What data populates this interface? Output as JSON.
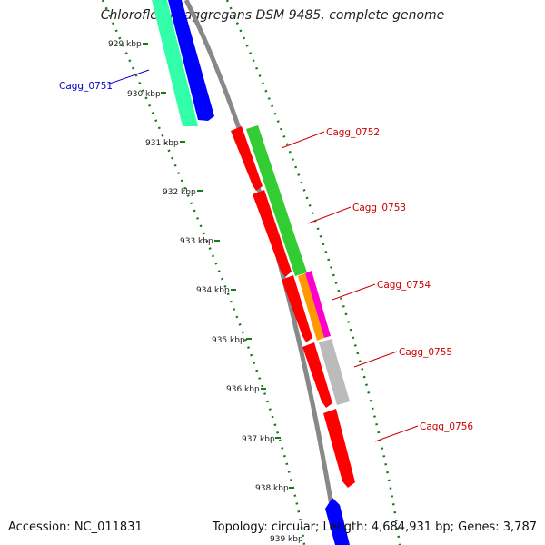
{
  "title": "Chloroflexus aggregans DSM 9485, complete genome",
  "accession": "Accession: NC_011831",
  "topology": "Topology: circular; Length: 4,684,931 bp; Genes: 3,787",
  "ticks": [
    "929 kbp",
    "930 kbp",
    "931 kbp",
    "932 kbp",
    "933 kbp",
    "934 kbp",
    "935 kbp",
    "936 kbp",
    "937 kbp",
    "938 kbp",
    "939 kbp"
  ],
  "genes": [
    {
      "label": "Cagg_0751",
      "color": "#0000cc"
    },
    {
      "label": "Cagg_0752",
      "color": "#cc0000"
    },
    {
      "label": "Cagg_0753",
      "color": "#cc0000"
    },
    {
      "label": "Cagg_0754",
      "color": "#cc0000"
    },
    {
      "label": "Cagg_0755",
      "color": "#cc0000"
    },
    {
      "label": "Cagg_0756",
      "color": "#cc0000"
    }
  ],
  "colors": {
    "backbone": "#888888",
    "ring": "#1a7a1a",
    "cds": "#ff0000",
    "cds_dark": "#cc0000",
    "cds_reverse": "#0000ff",
    "cog_teal": "#33ffaa",
    "cog_green": "#33cc33",
    "cog_gray": "#bbbbbb",
    "cog_magenta": "#ff00cc",
    "cog_orange": "#ff9900"
  }
}
